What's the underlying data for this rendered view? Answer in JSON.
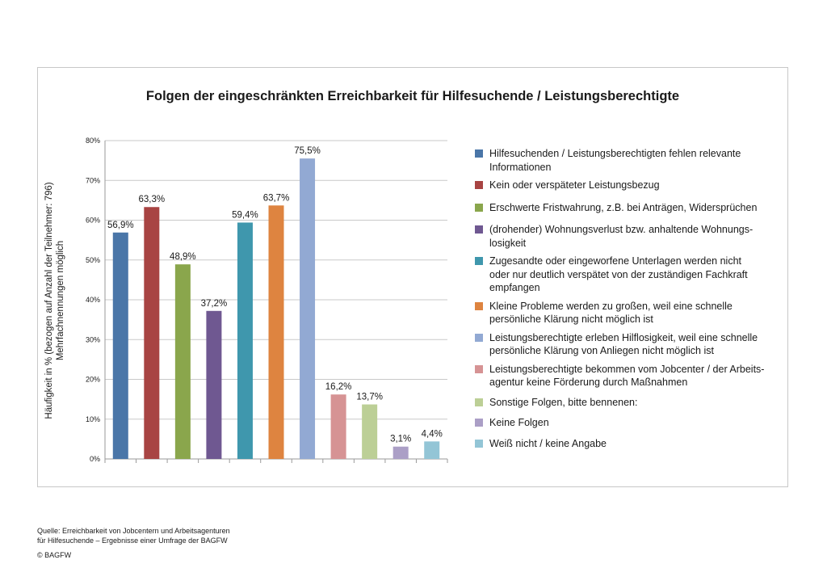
{
  "chart_data": {
    "type": "bar",
    "title": "Folgen der eingeschränkten Erreichbarkeit für Hilfesuchende / Leistungsberechtigte",
    "ylabel_lines": [
      "Häufigkeit in % (bezogen auf Anzahl der Teilnehmer: 796)",
      "Mehrfachnennungen möglich"
    ],
    "ylim": [
      0,
      80
    ],
    "yticks": [
      "0%",
      "10%",
      "20%",
      "30%",
      "40%",
      "50%",
      "60%",
      "70%",
      "80%"
    ],
    "grid": true,
    "legend_position": "right",
    "categories": [
      "Hilfesuchenden / Leistungsberechtigten fehlen relevante Informationen",
      "Kein oder verspäteter Leistungsbezug",
      "Erschwerte Fristwahrung, z.B. bei Anträgen, Widersprüchen",
      "(drohender) Wohnungsverlust bzw. anhaltende Wohnungs-losigkeit",
      "Zugesandte oder eingeworfene Unterlagen werden nicht oder nur deutlich verspätet von der zuständigen Fachkraft empfangen",
      "Kleine Probleme werden zu großen, weil eine schnelle persönliche Klärung nicht möglich ist",
      "Leistungsberechtigte erleben Hilflosigkeit, weil eine schnelle persönliche Klärung von Anliegen nicht möglich ist",
      "Leistungsberechtigte bekommen vom Jobcenter / der Arbeits-agentur keine Förderung durch Maßnahmen",
      "Sonstige Folgen, bitte bennenen:",
      "Keine Folgen",
      "Weiß nicht / keine Angabe"
    ],
    "values": [
      56.9,
      63.3,
      48.9,
      37.2,
      59.4,
      63.7,
      75.5,
      16.2,
      13.7,
      3.1,
      4.4
    ],
    "value_labels": [
      "56,9%",
      "63,3%",
      "48,9%",
      "37,2%",
      "59,4%",
      "63,7%",
      "75,5%",
      "16,2%",
      "13,7%",
      "3,1%",
      "4,4%"
    ],
    "colors": [
      "#4a76a8",
      "#a84443",
      "#8aa64c",
      "#6f5891",
      "#3f97ad",
      "#de8440",
      "#92a9d3",
      "#d69394",
      "#bccf96",
      "#ab9fc6",
      "#93c5d6"
    ]
  },
  "legend": [
    [
      "Hilfesuchenden / Leistungsberechtigten fehlen relevante",
      "Informationen"
    ],
    [
      "Kein oder verspäteter Leistungsbezug"
    ],
    [
      "Erschwerte Fristwahrung, z.B. bei Anträgen, Widersprüchen"
    ],
    [
      "(drohender) Wohnungsverlust bzw. anhaltende Wohnungs-",
      "losigkeit"
    ],
    [
      "Zugesandte oder eingeworfene Unterlagen werden nicht",
      "oder nur deutlich verspätet von der zuständigen Fachkraft",
      "empfangen"
    ],
    [
      "Kleine Probleme werden zu großen, weil eine schnelle",
      "persönliche Klärung nicht möglich ist"
    ],
    [
      "Leistungsberechtigte erleben Hilflosigkeit, weil eine schnelle",
      "persönliche Klärung von Anliegen nicht möglich ist"
    ],
    [
      "Leistungsberechtigte bekommen vom Jobcenter / der Arbeits-",
      "agentur keine Förderung durch Maßnahmen"
    ],
    [
      "Sonstige Folgen, bitte bennenen:"
    ],
    [
      "Keine Folgen"
    ],
    [
      "Weiß nicht / keine Angabe"
    ]
  ],
  "source": {
    "lines": [
      "Quelle: Erreichbarkeit von Jobcentern und Arbeitsagenturen",
      "für Hilfesuchende – Ergebnisse einer Umfrage der BAGFW"
    ],
    "copyright": "© BAGFW"
  }
}
